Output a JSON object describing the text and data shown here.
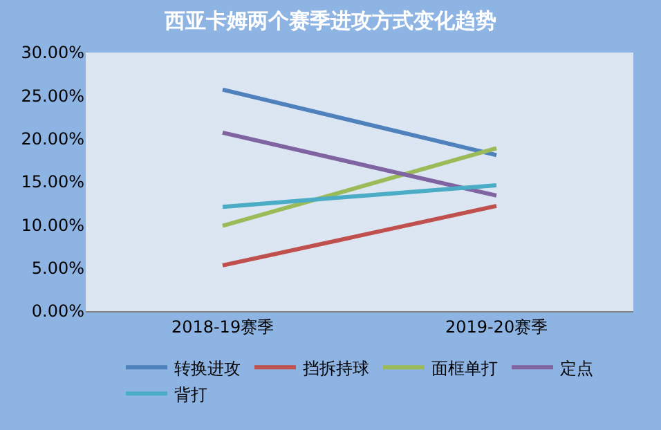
{
  "chart_data": {
    "type": "line",
    "title": "西亚卡姆两个赛季进攻方式变化趋势",
    "categories": [
      "2018-19赛季",
      "2019-20赛季"
    ],
    "series": [
      {
        "name": "转换进攻",
        "color": "#4f81bd",
        "values": [
          25.7,
          18.1
        ]
      },
      {
        "name": "挡拆持球",
        "color": "#c0504d",
        "values": [
          5.3,
          12.2
        ]
      },
      {
        "name": "面框单打",
        "color": "#9bbb59",
        "values": [
          9.9,
          18.9
        ]
      },
      {
        "name": "定点",
        "color": "#8064a2",
        "values": [
          20.7,
          13.4
        ]
      },
      {
        "name": "背打",
        "color": "#4bacc6",
        "values": [
          12.1,
          14.6
        ]
      }
    ],
    "ylim": [
      0,
      30
    ],
    "yticks": [
      {
        "value": 0,
        "label": "0.00%"
      },
      {
        "value": 5,
        "label": "5.00%"
      },
      {
        "value": 10,
        "label": "10.00%"
      },
      {
        "value": 15,
        "label": "15.00%"
      },
      {
        "value": 20,
        "label": "20.00%"
      },
      {
        "value": 25,
        "label": "25.00%"
      },
      {
        "value": 30,
        "label": "30.00%"
      }
    ],
    "grid": false,
    "legend": "bottom",
    "marker": "none",
    "line_style": "solid"
  }
}
